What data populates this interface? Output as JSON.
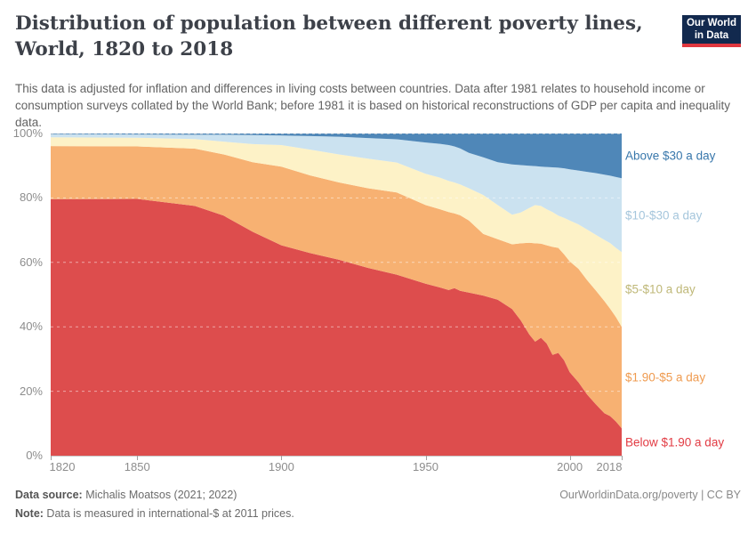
{
  "header": {
    "title": "Distribution of population between different poverty lines, World, 1820 to 2018",
    "subtitle": "This data is adjusted for inflation and differences in living costs between countries. Data after 1981 relates to household income or consumption surveys collated by the World Bank; before 1981 it is based on historical reconstructions of GDP per capita and inequality data.",
    "logo": {
      "line1": "Our World",
      "line2": "in Data",
      "bg_color": "#12294e",
      "bar_color": "#e0373f"
    }
  },
  "chart_data": {
    "type": "area",
    "stacked": true,
    "title": "Distribution of population between different poverty lines, World, 1820 to 2018",
    "xlabel": "",
    "ylabel": "",
    "unit": "%",
    "xlim": [
      1820,
      2018
    ],
    "ylim": [
      0,
      100
    ],
    "grid": "dashed-horizontal",
    "legend_position": "right-of-plot",
    "x": [
      1820,
      1850,
      1870,
      1880,
      1890,
      1900,
      1910,
      1920,
      1930,
      1940,
      1950,
      1955,
      1958,
      1960,
      1962,
      1965,
      1970,
      1975,
      1980,
      1983,
      1986,
      1988,
      1990,
      1992,
      1994,
      1996,
      1998,
      2000,
      2003,
      2006,
      2009,
      2012,
      2014,
      2016,
      2018
    ],
    "series": [
      {
        "name": "Below $1.90 a day",
        "color": "#dd4d4d",
        "label_color": "#e23b43",
        "values": [
          79.6,
          79.7,
          77.5,
          74.5,
          69.5,
          65.3,
          62.8,
          60.8,
          58.3,
          56.2,
          53.4,
          52.2,
          51.4,
          52.0,
          51.2,
          50.6,
          49.7,
          48.4,
          45.5,
          42.0,
          37.6,
          35.4,
          36.6,
          34.8,
          31.3,
          31.9,
          29.6,
          25.9,
          22.8,
          19.0,
          16.0,
          13.2,
          12.3,
          10.6,
          8.5
        ]
      },
      {
        "name": "$1.90-$5 a day",
        "color": "#f7b172",
        "label_color": "#ef9b50",
        "values": [
          16.5,
          16.3,
          17.8,
          19.0,
          21.6,
          24.4,
          24.1,
          24.0,
          24.7,
          25.5,
          24.4,
          24.3,
          24.2,
          23.2,
          23.4,
          22.4,
          19.1,
          18.8,
          20.1,
          23.9,
          28.5,
          30.5,
          29.2,
          30.5,
          33.5,
          32.6,
          32.9,
          34.4,
          35.2,
          35.5,
          35.3,
          34.8,
          33.3,
          32.4,
          31.5
        ]
      },
      {
        "name": "$5-$10 a day",
        "color": "#fdf2c7",
        "label_color": "#bfb878",
        "values": [
          2.7,
          2.7,
          3.0,
          4.0,
          5.6,
          6.7,
          8.0,
          8.7,
          9.2,
          9.3,
          9.7,
          9.8,
          9.7,
          9.6,
          9.6,
          10.0,
          12.1,
          10.6,
          9.2,
          9.6,
          10.8,
          11.9,
          11.7,
          11.2,
          10.8,
          10.0,
          11.3,
          12.7,
          13.8,
          15.7,
          17.3,
          19.0,
          20.4,
          21.5,
          23.2
        ]
      },
      {
        "name": "$10-$30 a day",
        "color": "#cbe2f0",
        "label_color": "#a5c6dc",
        "values": [
          1.0,
          1.0,
          1.3,
          2.1,
          2.8,
          3.0,
          4.2,
          5.5,
          6.4,
          7.2,
          9.7,
          10.5,
          11.1,
          11.2,
          11.2,
          11.0,
          11.7,
          13.3,
          15.6,
          14.7,
          13.1,
          12.1,
          12.2,
          13.1,
          13.9,
          14.9,
          15.4,
          15.9,
          16.7,
          17.9,
          19.1,
          20.2,
          20.9,
          22.0,
          22.9
        ]
      },
      {
        "name": "Above $30 a day",
        "color": "#4f87b8",
        "label_color": "#3877ab",
        "values": [
          0.2,
          0.3,
          0.4,
          0.4,
          0.5,
          0.6,
          0.8,
          1.0,
          1.4,
          1.8,
          2.8,
          3.2,
          3.6,
          4.0,
          4.6,
          6.0,
          7.4,
          8.9,
          9.6,
          9.8,
          10.0,
          10.1,
          10.3,
          10.4,
          10.5,
          10.6,
          10.8,
          11.1,
          11.5,
          11.9,
          12.3,
          12.8,
          13.1,
          13.5,
          13.9
        ]
      }
    ],
    "x_ticks": [
      1820,
      1850,
      1900,
      1950,
      2000,
      2018
    ],
    "y_ticks": [
      {
        "label": "100%",
        "value": 100
      },
      {
        "label": "80%",
        "value": 80
      },
      {
        "label": "60%",
        "value": 60
      },
      {
        "label": "40%",
        "value": 40
      },
      {
        "label": "20%",
        "value": 20
      },
      {
        "label": "0%",
        "value": 0
      }
    ]
  },
  "footer": {
    "source_label": "Data source:",
    "source_text": " Michalis Moatsos (2021; 2022)",
    "note_label": "Note:",
    "note_text": " Data is measured in international-$ at 2011 prices.",
    "right_text": "OurWorldinData.org/poverty | CC BY"
  }
}
